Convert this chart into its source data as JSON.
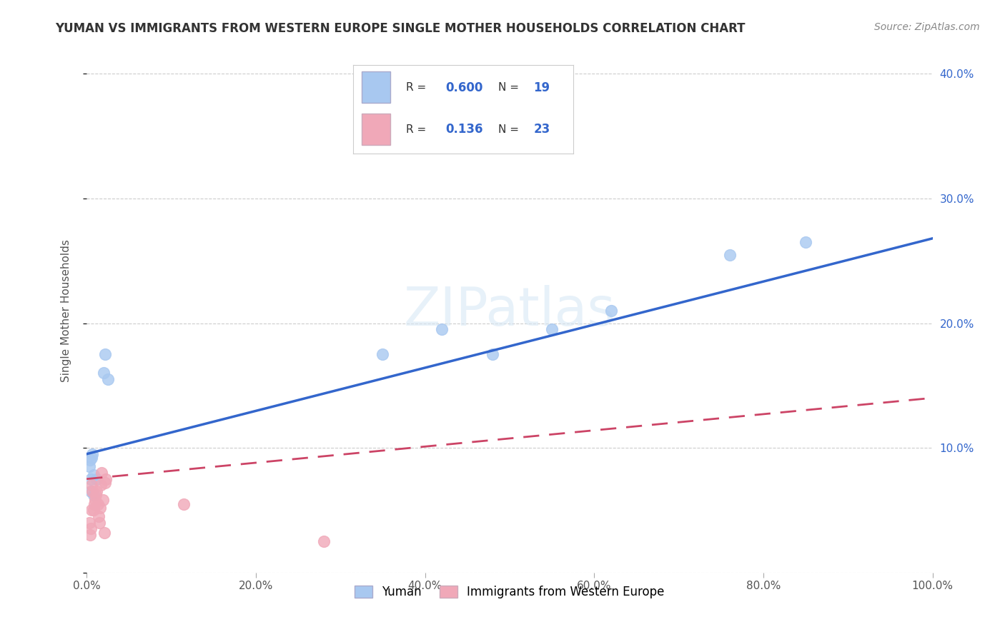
{
  "title": "YUMAN VS IMMIGRANTS FROM WESTERN EUROPE SINGLE MOTHER HOUSEHOLDS CORRELATION CHART",
  "source": "Source: ZipAtlas.com",
  "ylabel": "Single Mother Households",
  "xlabel": "",
  "xlim": [
    0,
    1.0
  ],
  "ylim": [
    0,
    0.42
  ],
  "yuman_R": 0.6,
  "yuman_N": 19,
  "immigrants_R": 0.136,
  "immigrants_N": 23,
  "yuman_color": "#a8c8f0",
  "yuman_line_color": "#3366cc",
  "immigrants_color": "#f0a8b8",
  "immigrants_line_color": "#cc4466",
  "background_color": "#ffffff",
  "watermark": "ZIPatlas",
  "yuman_x": [
    0.003,
    0.004,
    0.005,
    0.005,
    0.006,
    0.007,
    0.008,
    0.008,
    0.012,
    0.02,
    0.022,
    0.025,
    0.35,
    0.42,
    0.48,
    0.55,
    0.62,
    0.76,
    0.85
  ],
  "yuman_y": [
    0.085,
    0.09,
    0.075,
    0.065,
    0.092,
    0.095,
    0.078,
    0.062,
    0.075,
    0.16,
    0.175,
    0.155,
    0.175,
    0.195,
    0.175,
    0.195,
    0.21,
    0.255,
    0.265
  ],
  "immigrants_x": [
    0.003,
    0.004,
    0.005,
    0.006,
    0.006,
    0.007,
    0.008,
    0.009,
    0.01,
    0.011,
    0.012,
    0.013,
    0.014,
    0.015,
    0.016,
    0.017,
    0.018,
    0.019,
    0.021,
    0.022,
    0.023,
    0.115,
    0.28
  ],
  "immigrants_y": [
    0.04,
    0.03,
    0.035,
    0.05,
    0.07,
    0.065,
    0.05,
    0.055,
    0.058,
    0.062,
    0.065,
    0.055,
    0.045,
    0.04,
    0.052,
    0.07,
    0.08,
    0.058,
    0.032,
    0.072,
    0.075,
    0.055,
    0.025
  ],
  "xtick_labels": [
    "0.0%",
    "20.0%",
    "40.0%",
    "60.0%",
    "80.0%",
    "100.0%"
  ],
  "xtick_values": [
    0.0,
    0.2,
    0.4,
    0.6,
    0.8,
    1.0
  ],
  "ytick_values_left": [
    0.0,
    0.1,
    0.2,
    0.3,
    0.4
  ],
  "right_ytick_labels": [
    "10.0%",
    "20.0%",
    "30.0%",
    "40.0%"
  ],
  "right_ytick_values": [
    0.1,
    0.2,
    0.3,
    0.4
  ],
  "yuman_line_x0": 0.0,
  "yuman_line_y0": 0.095,
  "yuman_line_x1": 1.0,
  "yuman_line_y1": 0.268,
  "immigrants_line_x0": 0.0,
  "immigrants_line_y0": 0.075,
  "immigrants_line_x1": 1.0,
  "immigrants_line_y1": 0.14
}
